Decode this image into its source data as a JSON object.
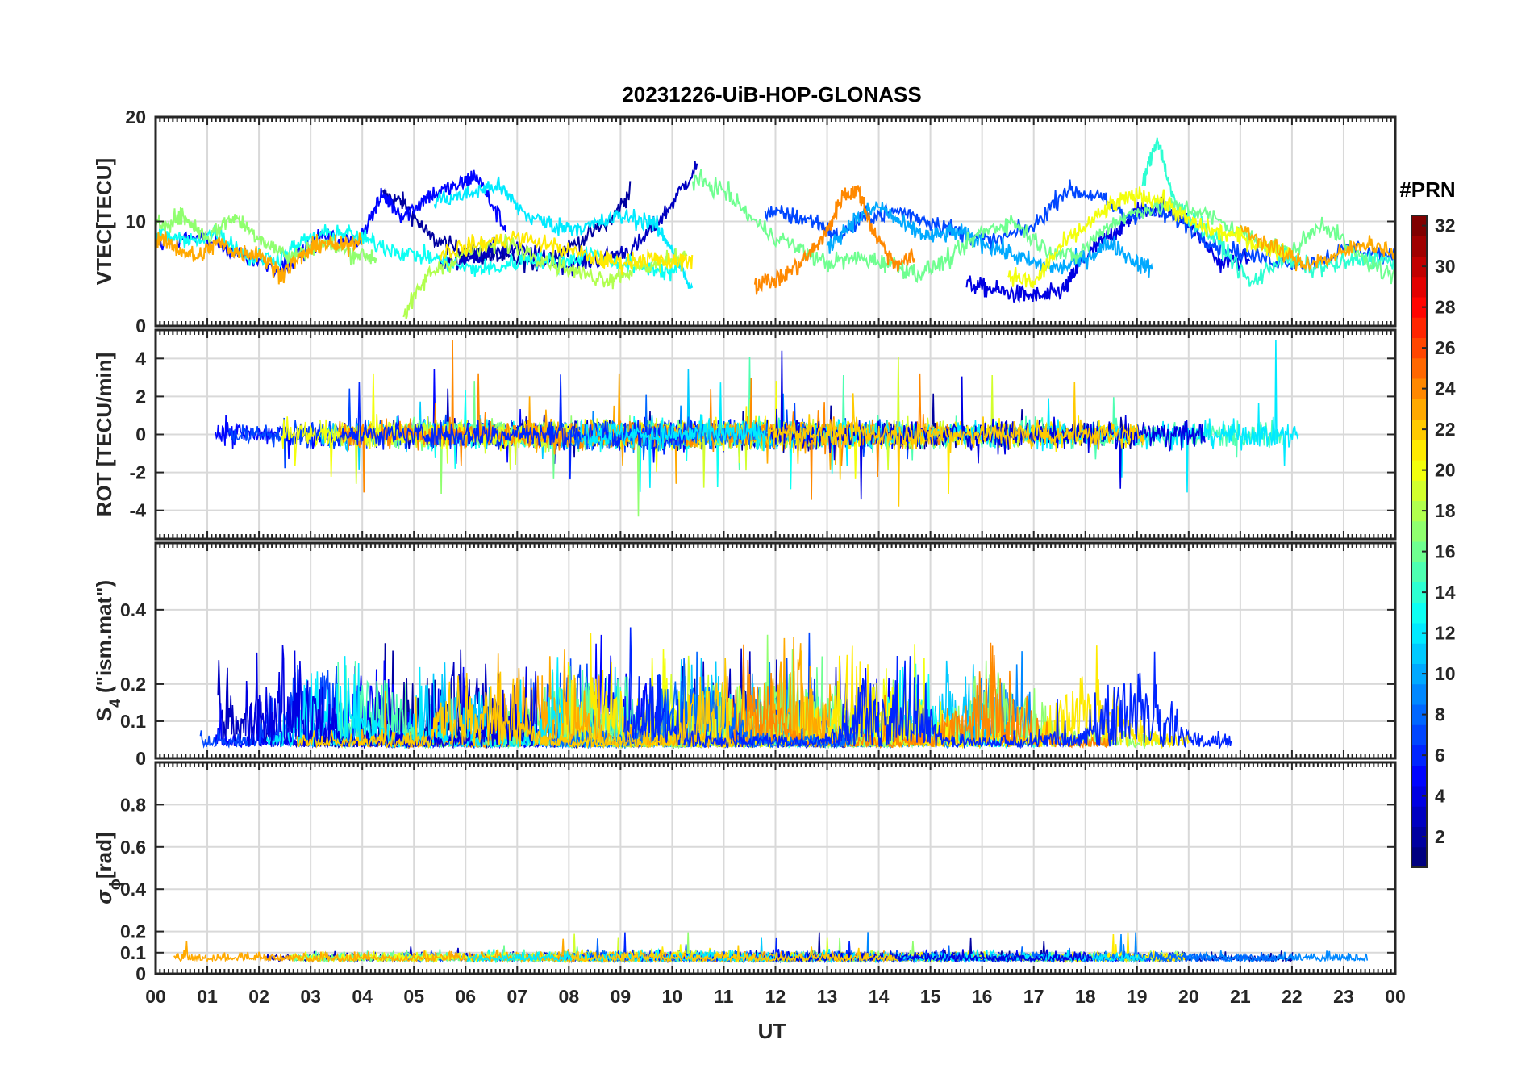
{
  "chart_data": {
    "type": "line",
    "title": "20231226-UiB-HOP-GLONASS",
    "xlabel": "UT",
    "x_ticks": [
      "00",
      "01",
      "02",
      "03",
      "04",
      "05",
      "06",
      "07",
      "08",
      "09",
      "10",
      "11",
      "12",
      "13",
      "14",
      "15",
      "16",
      "17",
      "18",
      "19",
      "20",
      "21",
      "22",
      "23",
      "00"
    ],
    "xlim": [
      0,
      24
    ],
    "grid": true,
    "panels": [
      {
        "id": "vtec",
        "ylabel": "VTEC[TECU]",
        "ylim": [
          0,
          20
        ],
        "y_ticks": [
          0,
          10,
          20
        ],
        "series": [
          {
            "color_index": 2,
            "x": [
              4.4,
              4.8,
              5.3,
              5.9,
              6.3,
              6.8,
              7.4,
              8.0,
              8.8,
              9.2
            ],
            "y": [
              12.5,
              11.8,
              8.5,
              7.2,
              6.8,
              6.5,
              6.0,
              7.5,
              10.0,
              13.0
            ]
          },
          {
            "color_index": 3,
            "x": [
              5.5,
              6.1,
              6.6,
              7.4,
              8.0,
              8.7,
              9.3,
              9.9,
              10.5
            ],
            "y": [
              6.0,
              6.5,
              7.5,
              6.8,
              5.8,
              6.5,
              7.5,
              11.0,
              15.5
            ]
          },
          {
            "color_index": 4,
            "x": [
              15.7,
              16.2,
              16.7,
              17.2,
              17.6,
              17.9,
              18.3,
              18.7,
              19.0,
              19.5,
              20.0,
              20.6,
              21.2
            ],
            "y": [
              4.0,
              3.5,
              3.0,
              2.8,
              3.5,
              6.0,
              8.0,
              9.5,
              11.0,
              11.5,
              10.0,
              6.0,
              6.5
            ]
          },
          {
            "color_index": 5,
            "x": [
              0.0,
              0.8,
              1.6,
              2.4,
              3.2,
              3.9,
              4.4,
              4.8,
              5.3,
              5.9,
              6.2,
              6.8
            ],
            "y": [
              8.0,
              8.5,
              7.0,
              5.5,
              8.5,
              8.0,
              12.5,
              10.5,
              12.5,
              13.5,
              14.5,
              9.0
            ]
          },
          {
            "color_index": 7,
            "x": [
              11.8,
              12.3,
              12.8,
              13.2,
              13.8,
              14.4,
              15.0,
              15.6,
              16.2,
              17.0,
              17.6,
              18.2,
              18.8,
              19.3,
              19.9,
              20.6,
              21.4,
              22.3,
              23.2,
              24.0
            ],
            "y": [
              11.0,
              10.5,
              10.0,
              8.5,
              10.5,
              11.0,
              10.0,
              9.0,
              8.0,
              9.5,
              13.0,
              12.5,
              10.5,
              11.0,
              10.0,
              7.5,
              6.5,
              6.0,
              7.5,
              6.5
            ]
          },
          {
            "color_index": 10,
            "x": [
              13.0,
              13.5,
              14.0,
              14.5,
              15.0,
              15.5,
              16.0,
              16.5,
              17.0,
              17.5,
              18.0,
              18.5,
              19.0,
              19.3
            ],
            "y": [
              7.5,
              10.0,
              11.5,
              9.5,
              8.5,
              9.0,
              8.0,
              7.0,
              6.0,
              5.5,
              6.5,
              8.0,
              6.0,
              5.5
            ]
          },
          {
            "color_index": 12,
            "x": [
              5.4,
              6.0,
              6.6,
              7.2,
              7.8,
              8.4,
              9.0,
              9.6,
              10.0,
              10.4
            ],
            "y": [
              12.0,
              12.5,
              13.5,
              10.5,
              9.5,
              9.5,
              10.5,
              10.0,
              7.5,
              3.0
            ]
          },
          {
            "color_index": 13,
            "x": [
              0.0,
              0.6,
              1.2,
              1.8,
              2.4,
              3.0,
              3.6,
              4.2,
              4.8,
              5.4,
              6.0,
              6.6,
              7.2,
              7.8,
              8.4,
              9.0,
              9.6,
              10.1
            ],
            "y": [
              9.0,
              8.0,
              9.0,
              6.5,
              6.5,
              8.5,
              9.0,
              8.0,
              7.0,
              6.5,
              5.5,
              5.5,
              6.5,
              6.0,
              7.0,
              6.0,
              5.5,
              5.0
            ]
          },
          {
            "color_index": 14,
            "x": [
              19.1,
              19.4,
              19.7,
              20.1,
              20.6,
              21.2,
              21.8,
              22.4,
              23.0,
              23.6,
              24.0
            ],
            "y": [
              13.5,
              18.0,
              12.0,
              10.0,
              8.0,
              4.0,
              6.5,
              5.5,
              6.0,
              6.5,
              6.0
            ]
          },
          {
            "color_index": 16,
            "x": [
              10.4,
              11.0,
              11.7,
              12.4,
              13.0,
              13.6,
              14.2,
              14.8,
              15.4,
              16.0,
              16.6,
              17.2,
              17.8,
              18.4,
              19.0,
              19.6,
              20.2,
              20.8,
              21.4,
              22.0,
              22.6,
              23.2,
              24.0
            ],
            "y": [
              14.0,
              13.0,
              9.5,
              7.5,
              6.0,
              6.5,
              6.0,
              5.0,
              6.5,
              9.0,
              10.0,
              7.5,
              6.5,
              9.5,
              11.0,
              11.5,
              11.0,
              9.5,
              8.0,
              7.0,
              10.0,
              7.0,
              4.5
            ]
          },
          {
            "color_index": 17,
            "x": [
              0.0,
              0.5,
              1.0,
              1.5,
              2.0,
              2.6,
              3.2,
              3.8,
              4.3
            ],
            "y": [
              9.5,
              10.5,
              8.5,
              10.5,
              8.5,
              6.5,
              8.0,
              7.0,
              6.5
            ]
          },
          {
            "color_index": 18,
            "x": [
              4.8,
              5.3,
              6.0,
              6.8,
              7.5,
              8.2,
              8.8,
              9.3,
              9.8,
              10.3
            ],
            "y": [
              1.0,
              5.0,
              7.0,
              8.0,
              6.5,
              5.0,
              4.5,
              5.5,
              6.0,
              7.0
            ]
          },
          {
            "color_index": 20,
            "x": [
              16.5,
              17.0,
              17.5,
              18.0,
              18.5,
              19.0,
              19.5,
              20.0,
              20.5,
              21.0,
              21.5,
              22.0
            ],
            "y": [
              5.0,
              4.0,
              7.5,
              9.5,
              11.5,
              12.5,
              12.0,
              10.0,
              9.0,
              8.5,
              7.5,
              7.0
            ]
          },
          {
            "color_index": 21,
            "x": [
              5.5,
              6.2,
              7.0,
              7.8,
              8.5,
              9.0,
              9.5,
              10.0,
              10.4
            ],
            "y": [
              7.0,
              7.8,
              8.5,
              7.5,
              6.5,
              6.0,
              6.5,
              6.0,
              6.5
            ]
          },
          {
            "color_index": 23,
            "x": [
              0.0,
              0.4,
              0.8,
              1.2,
              1.6,
              2.0,
              2.4,
              2.8,
              3.2,
              3.6,
              4.0
            ],
            "y": [
              8.5,
              7.5,
              6.5,
              8.0,
              7.0,
              7.0,
              5.0,
              6.5,
              8.0,
              7.5,
              8.5
            ]
          },
          {
            "color_index": 24,
            "x": [
              11.6,
              12.1,
              12.6,
              13.0,
              13.3,
              13.6,
              13.9,
              14.3,
              14.7
            ],
            "y": [
              4.0,
              4.5,
              6.5,
              9.0,
              12.5,
              13.0,
              9.0,
              6.0,
              6.5
            ]
          },
          {
            "color_index": 23,
            "x": [
              21.0,
              21.6,
              22.2,
              22.8,
              23.4,
              24.0
            ],
            "y": [
              9.5,
              7.5,
              6.0,
              6.5,
              8.0,
              7.0
            ]
          }
        ]
      },
      {
        "id": "rot",
        "ylabel": "ROT [TECU/min]",
        "ylim": [
          -5.5,
          5.5
        ],
        "y_ticks": [
          -4,
          -2,
          0,
          2,
          4
        ],
        "series": []
      },
      {
        "id": "s4",
        "ylabel": "S",
        "ylabel_subscript": "4",
        "ylabel_suffix": " (\"ism.mat\")",
        "ylim": [
          0,
          0.58
        ],
        "y_ticks": [
          0,
          0.1,
          0.2,
          0.4
        ],
        "series": []
      },
      {
        "id": "sigma",
        "ylabel": "σ",
        "ylabel_subscript": "ϕ",
        "ylabel_suffix": "[rad]",
        "ylim": [
          0,
          1.0
        ],
        "y_ticks": [
          0,
          0.1,
          0.2,
          0.4,
          0.6,
          0.8
        ],
        "series": []
      }
    ],
    "colorbar": {
      "title": "#PRN",
      "colormap": "jet",
      "range": [
        1,
        32
      ],
      "ticks": [
        2,
        4,
        6,
        8,
        10,
        12,
        14,
        16,
        18,
        20,
        22,
        24,
        26,
        28,
        30,
        32
      ]
    }
  }
}
